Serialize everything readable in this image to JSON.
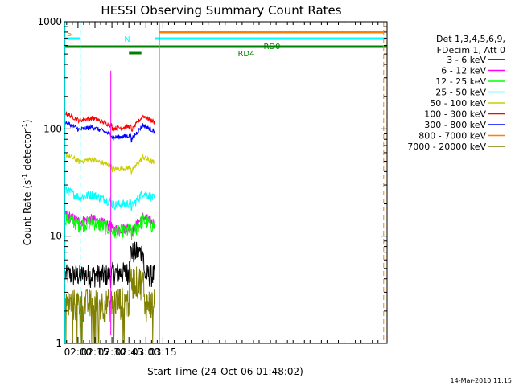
{
  "chart_data": {
    "type": "line",
    "title": "HESSI Observing Summary Count Rates",
    "xlabel": "Start Time (24-Oct-06 01:48:02)",
    "ylabel_main": "Count Rate (s",
    "ylabel_sup1": "-1",
    "ylabel_mid": " detector",
    "ylabel_sup2": "-1",
    "ylabel_end": ")",
    "y_scale": "log",
    "xlim_minutes": [
      108,
      393
    ],
    "ylim": [
      1,
      1000
    ],
    "x_ticks": [
      {
        "label": "02:00",
        "t": 120
      },
      {
        "label": "02:15",
        "t": 135
      },
      {
        "label": "02:30",
        "t": 150
      },
      {
        "label": "02:45",
        "t": 165
      },
      {
        "label": "03:00",
        "t": 180
      },
      {
        "label": "03:15",
        "t": 195
      }
    ],
    "y_ticks": [
      {
        "label": "1",
        "v": 1
      },
      {
        "label": "10",
        "v": 10
      },
      {
        "label": "100",
        "v": 100
      },
      {
        "label": "1000",
        "v": 1000
      }
    ],
    "legend_header": [
      "Det 1,3,4,5,6,9,",
      "FDecim 1, Att 0"
    ],
    "legend_position": "right",
    "series": [
      {
        "name": "3 - 6 keV",
        "color": "#000000"
      },
      {
        "name": "6 - 12 keV",
        "color": "#ff00ff"
      },
      {
        "name": "12 - 25 keV",
        "color": "#00ff00"
      },
      {
        "name": "25 - 50 keV",
        "color": "#00ffff"
      },
      {
        "name": "50 - 100 keV",
        "color": "#cccc00"
      },
      {
        "name": "100 - 300 keV",
        "color": "#ff0000"
      },
      {
        "name": "300 - 800 keV",
        "color": "#0000ff"
      },
      {
        "name": "800 - 7000 keV",
        "color": "#ff8000"
      },
      {
        "name": "7000 - 20000 keV",
        "color": "#808000"
      }
    ],
    "flags": {
      "saa_label": "S",
      "night_label": "N",
      "rd0_label": "RD0",
      "rd4_label": "RD4"
    },
    "timestamp": "14-Mar-2010 11:15"
  }
}
